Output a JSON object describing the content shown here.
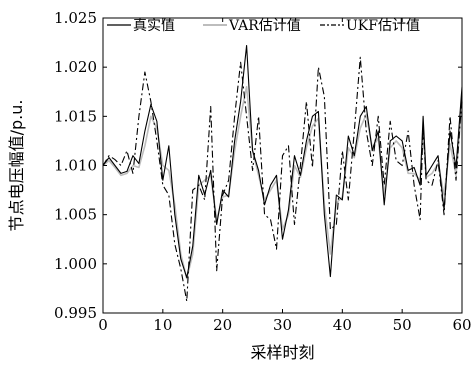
{
  "chart_data": {
    "type": "line",
    "xlabel": "采样时刻",
    "ylabel": "节点电压幅值/p.u.",
    "xlim": [
      0,
      60
    ],
    "ylim": [
      0.995,
      1.025
    ],
    "x_ticks": [
      "0",
      "10",
      "20",
      "30",
      "40",
      "50",
      "60"
    ],
    "y_ticks": [
      "0.995",
      "1.000",
      "1.005",
      "1.010",
      "1.015",
      "1.020",
      "1.025"
    ],
    "legend_position": "top",
    "grid": false,
    "x": [
      0,
      1,
      2,
      3,
      4,
      5,
      6,
      7,
      8,
      9,
      10,
      11,
      12,
      13,
      14,
      15,
      16,
      17,
      18,
      19,
      20,
      21,
      22,
      23,
      24,
      25,
      26,
      27,
      28,
      29,
      30,
      31,
      32,
      33,
      34,
      35,
      36,
      37,
      38,
      39,
      40,
      41,
      42,
      43,
      44,
      45,
      46,
      47,
      48,
      49,
      50,
      51,
      52,
      53,
      53.5,
      54,
      55,
      56,
      57,
      58,
      59,
      60
    ],
    "series": [
      {
        "name": "真实值",
        "color": "#000000",
        "style": "solid",
        "values": [
          1.01,
          1.0108,
          1.01,
          1.0092,
          1.0094,
          1.011,
          1.0102,
          1.0135,
          1.0162,
          1.0145,
          1.0085,
          1.012,
          1.005,
          1.0005,
          0.9986,
          1.0018,
          1.009,
          1.007,
          1.0095,
          1.004,
          1.0075,
          1.0068,
          1.0125,
          1.0165,
          1.0222,
          1.0115,
          1.0095,
          1.006,
          1.008,
          1.009,
          1.0025,
          1.0055,
          1.011,
          1.009,
          1.0125,
          1.015,
          1.0155,
          1.005,
          0.9987,
          1.007,
          1.0065,
          1.013,
          1.011,
          1.015,
          1.016,
          1.0115,
          1.0135,
          1.006,
          1.0125,
          1.013,
          1.0125,
          1.0095,
          1.0098,
          1.008,
          1.015,
          1.009,
          1.01,
          1.011,
          1.0055,
          1.0135,
          1.0098,
          1.018
        ]
      },
      {
        "name": "VAR估计值",
        "color": "#bdbdbd",
        "style": "solid",
        "values": [
          1.01,
          1.0105,
          1.0098,
          1.009,
          1.0092,
          1.01,
          1.0098,
          1.012,
          1.015,
          1.0138,
          1.01,
          1.0095,
          1.006,
          1.001,
          0.9985,
          1.001,
          1.008,
          1.0085,
          1.009,
          1.0045,
          1.0068,
          1.007,
          1.0115,
          1.015,
          1.018,
          1.0115,
          1.009,
          1.0065,
          1.0075,
          1.0085,
          1.0035,
          1.005,
          1.01,
          1.0088,
          1.0118,
          1.014,
          1.0148,
          1.006,
          1.001,
          1.0062,
          1.0068,
          1.0118,
          1.0108,
          1.0138,
          1.0152,
          1.0118,
          1.0128,
          1.007,
          1.0118,
          1.0125,
          1.0118,
          1.0092,
          1.0092,
          1.0085,
          1.0138,
          1.0088,
          1.0092,
          1.0102,
          1.007,
          1.0122,
          1.009,
          1.0165
        ]
      },
      {
        "name": "UKF估计值",
        "color": "#000000",
        "style": "dashdot",
        "values": [
          1.01,
          1.011,
          1.0106,
          1.01,
          1.0115,
          1.0092,
          1.015,
          1.0195,
          1.0165,
          1.0125,
          1.008,
          1.007,
          1.002,
          0.9995,
          0.9962,
          1.0075,
          1.008,
          1.0065,
          1.016,
          0.9993,
          1.007,
          1.0085,
          1.015,
          1.0205,
          1.015,
          1.0095,
          1.015,
          1.005,
          1.0045,
          1.0015,
          1.011,
          1.012,
          1.004,
          1.01,
          1.0165,
          1.0098,
          1.02,
          1.017,
          1.0035,
          1.004,
          1.0115,
          1.0065,
          1.0135,
          1.021,
          1.0135,
          1.01,
          1.015,
          1.008,
          1.0145,
          1.0105,
          1.01,
          1.0135,
          1.008,
          1.0045,
          1.014,
          1.0085,
          1.008,
          1.0105,
          1.005,
          1.015,
          1.0085,
          1.017
        ]
      }
    ]
  }
}
